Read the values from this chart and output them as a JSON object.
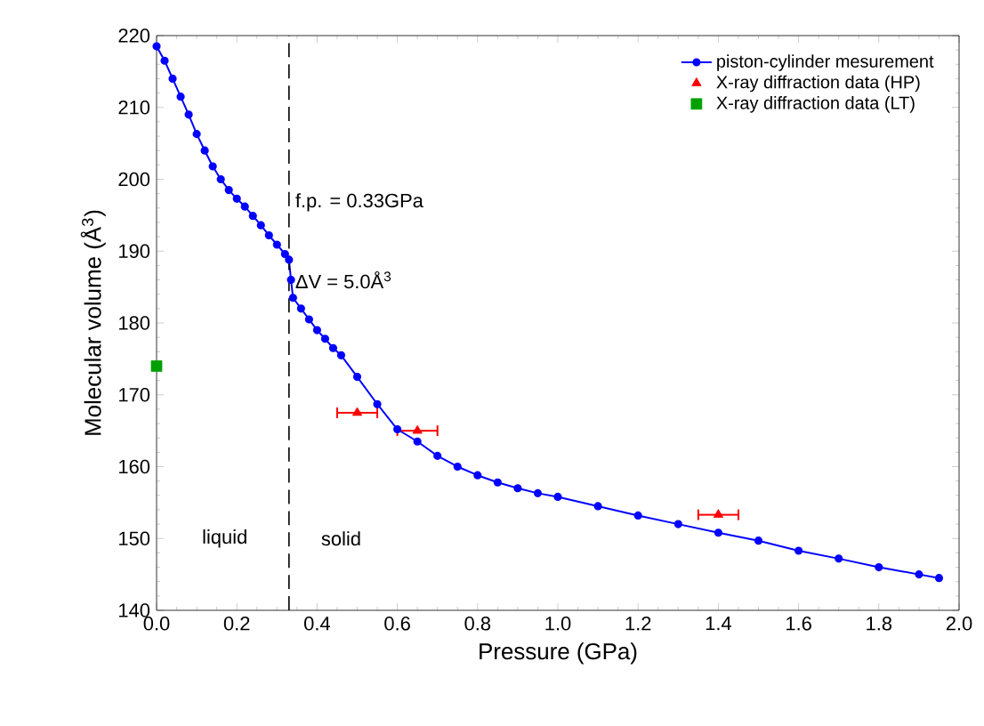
{
  "chart_data": {
    "type": "line",
    "xlabel": "Pressure (GPa)",
    "ylabel": "Molecular volume (Å$^{3}$)",
    "xlim": [
      0,
      2.0
    ],
    "ylim": [
      140,
      220
    ],
    "xticks": [
      {
        "value": 0,
        "label": "0.0"
      },
      {
        "value": 0.2,
        "label": "0.2"
      },
      {
        "value": 0.4,
        "label": "0.4"
      },
      {
        "value": 0.6,
        "label": "0.6"
      },
      {
        "value": 0.8,
        "label": "0.8"
      },
      {
        "value": 1.0,
        "label": "1.0"
      },
      {
        "value": 1.2,
        "label": "1.2"
      },
      {
        "value": 1.4,
        "label": "1.4"
      },
      {
        "value": 1.6,
        "label": "1.6"
      },
      {
        "value": 1.8,
        "label": "1.8"
      },
      {
        "value": 2.0,
        "label": "2.0"
      }
    ],
    "yticks": [
      140,
      150,
      160,
      170,
      180,
      190,
      200,
      210,
      220
    ],
    "grid": false,
    "legend": "top right",
    "series": [
      {
        "name": "piston-cylinder mesurement",
        "type": "line",
        "marker": "circle",
        "line_style": "solid",
        "color": "#0000ff",
        "x": [
          0,
          0.02,
          0.04,
          0.06,
          0.08,
          0.1,
          0.12,
          0.14,
          0.16,
          0.18,
          0.2,
          0.22,
          0.24,
          0.26,
          0.28,
          0.3,
          0.32,
          0.33,
          0.335,
          0.34,
          0.36,
          0.38,
          0.4,
          0.42,
          0.44,
          0.46,
          0.5,
          0.55,
          0.6,
          0.65,
          0.7,
          0.75,
          0.8,
          0.85,
          0.9,
          0.95,
          1.0,
          1.1,
          1.2,
          1.3,
          1.4,
          1.5,
          1.6,
          1.7,
          1.8,
          1.9,
          1.95
        ],
        "values": [
          218.5,
          216.5,
          214,
          211.5,
          209,
          206.3,
          204,
          201.8,
          200,
          198.5,
          197.3,
          196.2,
          194.9,
          193.6,
          192.2,
          190.9,
          189.6,
          188.8,
          186,
          183.5,
          182,
          180.5,
          179,
          177.8,
          176.5,
          175.5,
          172.5,
          168.7,
          165.2,
          163.5,
          161.5,
          160,
          158.8,
          157.8,
          157,
          156.3,
          155.8,
          154.5,
          153.2,
          152,
          150.8,
          149.7,
          148.3,
          147.2,
          146,
          145,
          144.5
        ]
      },
      {
        "name": "X-ray diffraction data (HP)",
        "type": "scatter",
        "marker": "triangle",
        "color": "#ff0000",
        "x": [
          0.5,
          0.65,
          1.4
        ],
        "values": [
          167.5,
          165,
          153.3
        ],
        "xerrors": [
          0.05,
          0.05,
          0.05
        ]
      },
      {
        "name": "X-ray diffraction data (LT)",
        "type": "scatter",
        "marker": "square",
        "color": "#00a000",
        "x": [
          0
        ],
        "values": [
          174
        ]
      }
    ],
    "ref_lines": [
      {
        "axis": "x",
        "value": 0.33,
        "label": "f.p. = 0.33GPa",
        "line_style": "dashed",
        "color": "#000000"
      }
    ],
    "annotations": [
      {
        "text": "ΔV = 5.0Å$^{3}$",
        "x": 0.33,
        "y": 186
      },
      "liquid",
      "solid"
    ]
  }
}
